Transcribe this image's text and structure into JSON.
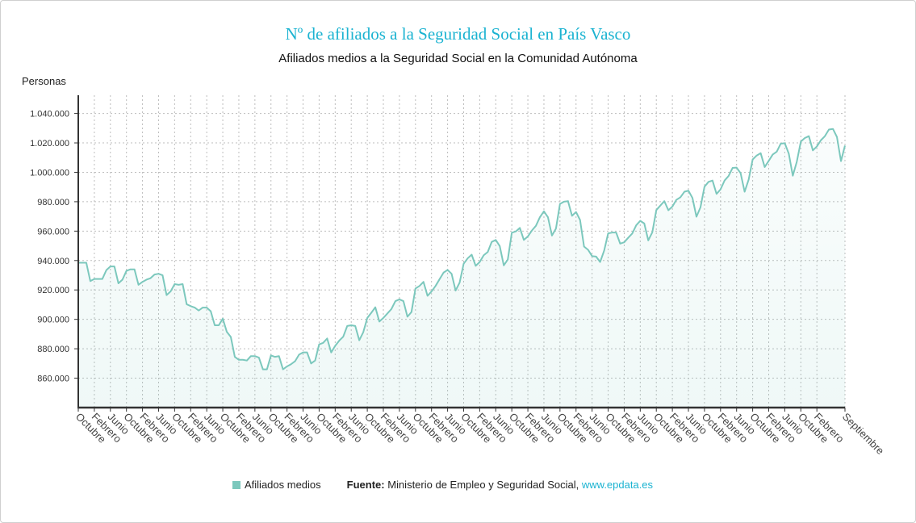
{
  "chart_data": {
    "type": "area",
    "title": "Nº de afiliados a la Seguridad Social en País Vasco",
    "subtitle": "Afiliados medios a la Seguridad Social en la Comunidad Autónoma",
    "ylabel": "Personas",
    "xlabel": "",
    "ylim": [
      840000,
      1052000
    ],
    "grid": true,
    "y_ticks": [
      860000,
      880000,
      900000,
      920000,
      940000,
      960000,
      980000,
      1000000,
      1020000,
      1040000
    ],
    "y_tick_labels": [
      "860.000",
      "880.000",
      "900.000",
      "920.000",
      "940.000",
      "960.000",
      "980.000",
      "1.000.000",
      "1.020.000",
      "1.040.000"
    ],
    "x_tick_labels": [
      "Octubre",
      "Febrero",
      "Junio",
      "Octubre",
      "Febrero",
      "Junio",
      "Octubre",
      "Febrero",
      "Junio",
      "Octubre",
      "Febrero",
      "Junio",
      "Octubre",
      "Febrero",
      "Junio",
      "Octubre",
      "Febrero",
      "Junio",
      "Octubre",
      "Febrero",
      "Junio",
      "Octubre",
      "Febrero",
      "Junio",
      "Octubre",
      "Febrero",
      "Junio",
      "Octubre",
      "Febrero",
      "Junio",
      "Octubre",
      "Febrero",
      "Junio",
      "Octubre",
      "Febrero",
      "Junio",
      "Octubre",
      "Febrero",
      "Junio",
      "Octubre",
      "Febrero",
      "Junio",
      "Octubre",
      "Febrero",
      "Junio",
      "Octubre",
      "Febrero",
      "Septiembre"
    ],
    "series": [
      {
        "name": "Afiliados medios",
        "color": "#7cc8bd",
        "values": [
          938500,
          938500,
          938500,
          926000,
          927500,
          927500,
          927500,
          933500,
          936000,
          936000,
          924500,
          927000,
          933000,
          934000,
          934000,
          923500,
          925500,
          927000,
          928000,
          930500,
          931000,
          930000,
          916500,
          919000,
          924000,
          923500,
          924000,
          910300,
          909000,
          908000,
          906000,
          908000,
          908000,
          905500,
          896000,
          896000,
          900500,
          891500,
          888000,
          874500,
          872500,
          872500,
          872000,
          875000,
          875000,
          874000,
          866000,
          866000,
          875500,
          874500,
          875000,
          866000,
          868000,
          869500,
          871500,
          876000,
          877500,
          877500,
          870000,
          872000,
          883000,
          884000,
          887000,
          877500,
          882000,
          885500,
          888200,
          895500,
          896000,
          895500,
          885800,
          891300,
          901000,
          904500,
          908200,
          898500,
          901000,
          904000,
          907000,
          912400,
          913600,
          912400,
          901800,
          905000,
          921000,
          922700,
          925500,
          916000,
          919000,
          922700,
          927300,
          931800,
          933600,
          931000,
          919600,
          925000,
          937800,
          941500,
          944000,
          936400,
          939000,
          943600,
          945800,
          952700,
          954000,
          949800,
          936700,
          940700,
          958900,
          959800,
          962200,
          954000,
          956400,
          960400,
          963600,
          969500,
          973500,
          969500,
          957000,
          961800,
          978500,
          980000,
          980400,
          970400,
          973000,
          967600,
          949500,
          947300,
          943000,
          942700,
          939000,
          946700,
          958500,
          959000,
          959000,
          951500,
          952400,
          955500,
          958400,
          964000,
          967000,
          965200,
          953700,
          959200,
          974300,
          977400,
          980400,
          974200,
          976700,
          981300,
          983000,
          986800,
          987500,
          982600,
          969800,
          976200,
          990200,
          993500,
          994400,
          985300,
          988400,
          994400,
          997500,
          1003000,
          1003200,
          999400,
          986800,
          995000,
          1008700,
          1011400,
          1013000,
          1003600,
          1007800,
          1012100,
          1014000,
          1019500,
          1019800,
          1012700,
          997700,
          1007200,
          1020900,
          1023300,
          1024600,
          1014900,
          1017600,
          1021800,
          1024600,
          1029100,
          1029500,
          1024000,
          1007600,
          1018200
        ]
      }
    ]
  },
  "legend": {
    "label": "Afiliados medios"
  },
  "source": {
    "prefix": "Fuente:",
    "text": "Ministerio de Empleo y Seguridad Social,",
    "link": "www.epdata.es"
  }
}
